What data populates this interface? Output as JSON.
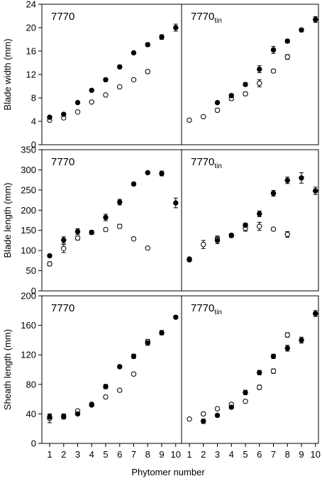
{
  "figure": {
    "xlabel": "Phytomer number",
    "x_ticks": [
      "1",
      "2",
      "3",
      "4",
      "5",
      "6",
      "7",
      "8",
      "9",
      "10"
    ]
  },
  "legend_markers": {
    "filled": "black filled circle",
    "open": "white open circle"
  },
  "chart_data": [
    {
      "type": "scatter",
      "panel": "blade-width-7770",
      "label_main": "7770",
      "label_sub": "",
      "ylabel": "Blade width (mm)",
      "ylim": [
        0,
        24
      ],
      "yticks": [
        0,
        4,
        8,
        12,
        16,
        20,
        24
      ],
      "series": [
        {
          "marker": "filled",
          "x": [
            1,
            2,
            3,
            4,
            5,
            6,
            7,
            8,
            9,
            10
          ],
          "y": [
            4.7,
            5.2,
            7.2,
            9.3,
            11.1,
            13.3,
            15.7,
            17.1,
            18.4,
            20.0
          ],
          "err": [
            0.2,
            0.2,
            0.2,
            0.2,
            0.3,
            0.3,
            0.2,
            0.3,
            0.4,
            0.6
          ]
        },
        {
          "marker": "open",
          "x": [
            1,
            2,
            3,
            4,
            5,
            6,
            7,
            8
          ],
          "y": [
            4.2,
            4.6,
            5.6,
            7.3,
            8.5,
            9.9,
            11.1,
            12.5
          ],
          "err": [
            0.2,
            0.2,
            0.2,
            0.2,
            0.2,
            0.2,
            0.2,
            0.3
          ]
        }
      ]
    },
    {
      "type": "scatter",
      "panel": "blade-width-7770tin",
      "label_main": "7770",
      "label_sub": "tin",
      "ylabel": "",
      "ylim": [
        0,
        24
      ],
      "yticks": [
        0,
        4,
        8,
        12,
        16,
        20,
        24
      ],
      "series": [
        {
          "marker": "filled",
          "x": [
            3,
            4,
            5,
            6,
            7,
            8,
            9,
            10
          ],
          "y": [
            7.2,
            8.4,
            10.3,
            12.9,
            16.2,
            17.7,
            19.6,
            21.4
          ],
          "err": [
            0.2,
            0.3,
            0.3,
            0.6,
            0.6,
            0.3,
            0.3,
            0.5
          ]
        },
        {
          "marker": "open",
          "x": [
            1,
            2,
            3,
            4,
            5,
            6,
            7,
            8
          ],
          "y": [
            4.2,
            4.8,
            5.9,
            7.9,
            8.7,
            10.5,
            12.6,
            15.0
          ],
          "err": [
            0.1,
            0.1,
            0.3,
            0.3,
            0.3,
            0.6,
            0.3,
            0.4
          ]
        }
      ]
    },
    {
      "type": "scatter",
      "panel": "blade-length-7770",
      "label_main": "7770",
      "label_sub": "",
      "ylabel": "Blade length (mm)",
      "ylim": [
        0,
        350
      ],
      "yticks": [
        0,
        50,
        100,
        150,
        200,
        250,
        300,
        350
      ],
      "series": [
        {
          "marker": "filled",
          "x": [
            1,
            2,
            3,
            4,
            5,
            6,
            7,
            8,
            9,
            10
          ],
          "y": [
            87,
            126,
            147,
            145,
            182,
            220,
            265,
            293,
            291,
            218
          ],
          "err": [
            3,
            8,
            7,
            5,
            8,
            7,
            4,
            3,
            6,
            12
          ]
        },
        {
          "marker": "open",
          "x": [
            1,
            2,
            3,
            4,
            5,
            6,
            7,
            8
          ],
          "y": [
            67,
            105,
            131,
            145,
            152,
            160,
            129,
            106
          ],
          "err": [
            5,
            10,
            5,
            4,
            4,
            5,
            4,
            3
          ]
        }
      ]
    },
    {
      "type": "scatter",
      "panel": "blade-length-7770tin",
      "label_main": "7770",
      "label_sub": "tin",
      "ylabel": "",
      "ylim": [
        0,
        350
      ],
      "yticks": [
        0,
        50,
        100,
        150,
        200,
        250,
        300,
        350
      ],
      "series": [
        {
          "marker": "filled",
          "x": [
            1,
            3,
            4,
            5,
            6,
            7,
            8,
            9,
            10
          ],
          "y": [
            77,
            125,
            138,
            163,
            191,
            242,
            274,
            280,
            248
          ],
          "err": [
            4,
            8,
            4,
            5,
            7,
            7,
            8,
            13,
            9
          ]
        },
        {
          "marker": "open",
          "x": [
            1,
            2,
            3,
            4,
            5,
            6,
            7,
            8
          ],
          "y": [
            79,
            115,
            130,
            137,
            155,
            160,
            153,
            140
          ],
          "err": [
            4,
            10,
            6,
            4,
            7,
            10,
            4,
            7
          ]
        }
      ]
    },
    {
      "type": "scatter",
      "panel": "sheath-length-7770",
      "label_main": "7770",
      "label_sub": "",
      "ylabel": "Sheath length (mm)",
      "ylim": [
        0,
        200
      ],
      "yticks": [
        0,
        40,
        80,
        120,
        160,
        200
      ],
      "series": [
        {
          "marker": "filled",
          "x": [
            1,
            2,
            3,
            4,
            5,
            6,
            7,
            8,
            9,
            10
          ],
          "y": [
            36,
            36,
            40,
            53,
            77,
            104,
            118,
            136,
            150,
            171
          ],
          "err": [
            3,
            3,
            2,
            2,
            3,
            2,
            3,
            3,
            3,
            2
          ]
        },
        {
          "marker": "open",
          "x": [
            1,
            2,
            3,
            4,
            5,
            6,
            7,
            8
          ],
          "y": [
            34,
            37,
            44,
            52,
            63,
            72,
            94,
            138
          ],
          "err": [
            6,
            3,
            2,
            2,
            2,
            2,
            2,
            3
          ]
        }
      ]
    },
    {
      "type": "scatter",
      "panel": "sheath-length-7770tin",
      "label_main": "7770",
      "label_sub": "tin",
      "ylabel": "",
      "ylim": [
        0,
        200
      ],
      "yticks": [
        0,
        40,
        80,
        120,
        160,
        200
      ],
      "series": [
        {
          "marker": "filled",
          "x": [
            2,
            3,
            4,
            5,
            6,
            7,
            8,
            9,
            10
          ],
          "y": [
            30,
            38,
            49,
            69,
            96,
            118,
            129,
            140,
            176
          ],
          "err": [
            3,
            2,
            2,
            3,
            3,
            3,
            4,
            4,
            4
          ]
        },
        {
          "marker": "open",
          "x": [
            1,
            2,
            3,
            4,
            5,
            6,
            7,
            8
          ],
          "y": [
            33,
            40,
            47,
            53,
            57,
            76,
            98,
            147
          ],
          "err": [
            2,
            2,
            2,
            2,
            2,
            3,
            3,
            3
          ]
        }
      ]
    }
  ]
}
